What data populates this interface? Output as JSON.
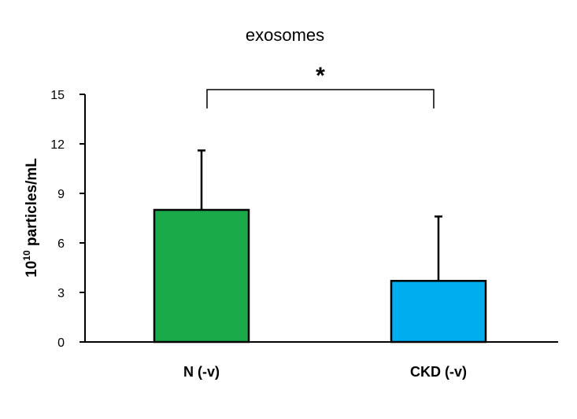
{
  "chart_data": {
    "type": "bar",
    "title": "exosomes",
    "ylabel": {
      "base": "10",
      "exponent": "10",
      "rest": " particles/mL"
    },
    "xlabel": "",
    "categories": [
      "N (-v)",
      "CKD (-v)"
    ],
    "values": [
      8.0,
      3.7
    ],
    "error_upper": [
      3.6,
      3.9
    ],
    "colors": [
      "#1aaa4a",
      "#00aeef"
    ],
    "ylim": [
      0,
      15
    ],
    "yticks": [
      "0",
      "3",
      "6",
      "9",
      "12",
      "15"
    ],
    "grid": false,
    "legend": "none",
    "significance": {
      "between": [
        0,
        1
      ],
      "label": "*"
    }
  }
}
